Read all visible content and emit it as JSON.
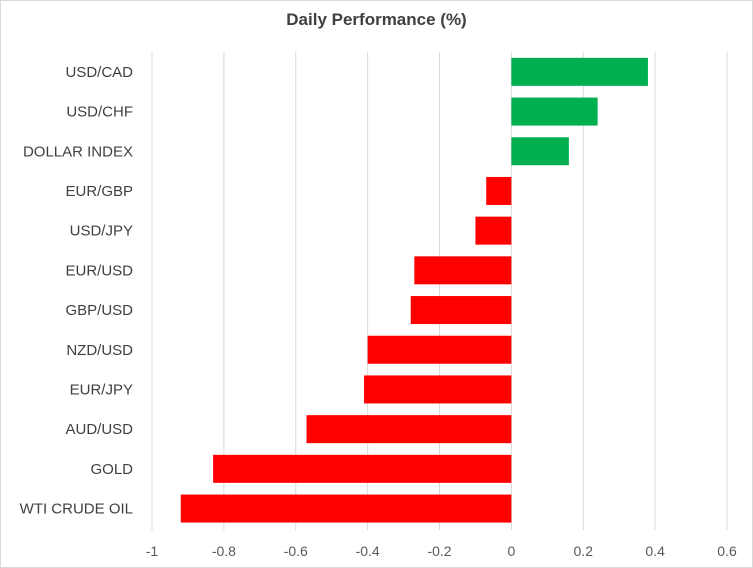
{
  "chart_data": {
    "type": "bar",
    "orientation": "horizontal",
    "title": "Daily Performance (%)",
    "xlabel": "",
    "ylabel": "",
    "categories": [
      "USD/CAD",
      "USD/CHF",
      "DOLLAR INDEX",
      "EUR/GBP",
      "USD/JPY",
      "EUR/USD",
      "GBP/USD",
      "NZD/USD",
      "EUR/JPY",
      "AUD/USD",
      "GOLD",
      "WTI CRUDE OIL"
    ],
    "values": [
      0.38,
      0.24,
      0.16,
      -0.07,
      -0.1,
      -0.27,
      -0.28,
      -0.4,
      -0.41,
      -0.57,
      -0.83,
      -0.92
    ],
    "xlim": [
      -1,
      0.6
    ],
    "xticks": [
      -1,
      -0.8,
      -0.6,
      -0.4,
      -0.2,
      0,
      0.2,
      0.4,
      0.6
    ],
    "xtick_labels": [
      "-1",
      "-0.8",
      "-0.6",
      "-0.4",
      "-0.2",
      "0",
      "0.2",
      "0.4",
      "0.6"
    ],
    "grid": "vertical",
    "legend": "none",
    "colors": {
      "positive": "#00b050",
      "negative": "#ff0000"
    }
  }
}
